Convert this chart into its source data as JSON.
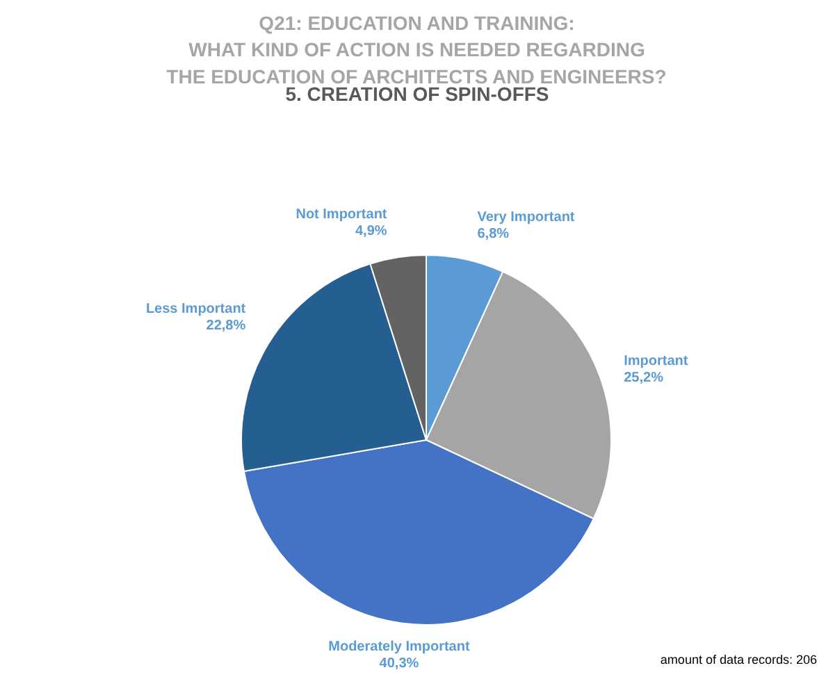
{
  "chart_data": {
    "type": "pie",
    "title": "Q21: EDUCATION AND TRAINING:\nWHAT KIND OF ACTION IS NEEDED REGARDING\nTHE EDUCATION OF ARCHITECTS AND ENGINEERS?",
    "subtitle": "5. CREATION OF SPIN-OFFS",
    "categories": [
      "Very Important",
      "Important",
      "Moderately Important",
      "Less Important",
      "Not Important"
    ],
    "values": [
      6.8,
      25.2,
      40.3,
      22.8,
      4.9
    ],
    "value_labels": [
      "6,8%",
      "25,2%",
      "40,3%",
      "22,8%",
      "4,9%"
    ],
    "colors": [
      "#5b9bd5",
      "#a5a5a5",
      "#4472c4",
      "#255e91",
      "#636363"
    ],
    "annotations": [
      "amount of data records: 206"
    ]
  }
}
